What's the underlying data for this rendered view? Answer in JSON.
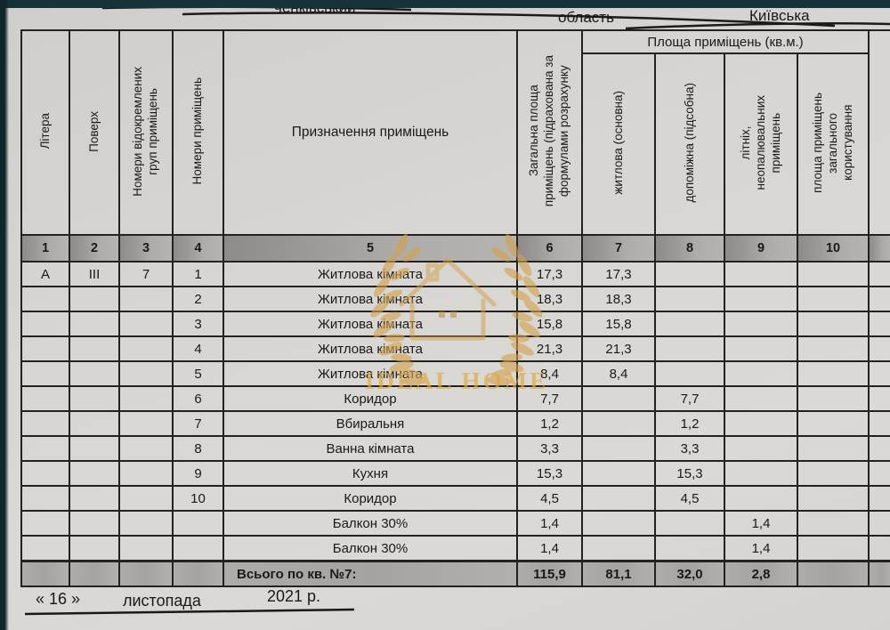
{
  "page_header": {
    "district_partial": "ченківський",
    "oblast_label": "область",
    "oblast_value": "Київська"
  },
  "table": {
    "headers": {
      "col1": "Літера",
      "col2": "Поверх",
      "col3": "Номери відокремлених\nгруп приміщень",
      "col4": "Номери приміщень",
      "col5": "Призначення приміщень",
      "col6": "Загальна площа\nприміщень (підрахована за\nформулами розрахунку",
      "area_group": "Площа приміщень (кв.м.)",
      "col7": "житлова (основна)",
      "col8": "допоміжна (підсобна)",
      "col9": "літніх,\nнеопалювальних\nприміщень",
      "col10": "площа приміщень\nзагального\nкористування"
    },
    "column_numbers": [
      "1",
      "2",
      "3",
      "4",
      "5",
      "6",
      "7",
      "8",
      "9",
      "10"
    ],
    "rows": [
      [
        "А",
        "ІІІ",
        "7",
        "1",
        "Житлова кімната",
        "17,3",
        "17,3",
        "",
        "",
        ""
      ],
      [
        "",
        "",
        "",
        "2",
        "Житлова кімната",
        "18,3",
        "18,3",
        "",
        "",
        ""
      ],
      [
        "",
        "",
        "",
        "3",
        "Житлова кімната",
        "15,8",
        "15,8",
        "",
        "",
        ""
      ],
      [
        "",
        "",
        "",
        "4",
        "Житлова кімната",
        "21,3",
        "21,3",
        "",
        "",
        ""
      ],
      [
        "",
        "",
        "",
        "5",
        "Житлова кімната",
        "8,4",
        "8,4",
        "",
        "",
        ""
      ],
      [
        "",
        "",
        "",
        "6",
        "Коридор",
        "7,7",
        "",
        "7,7",
        "",
        ""
      ],
      [
        "",
        "",
        "",
        "7",
        "Вбиральня",
        "1,2",
        "",
        "1,2",
        "",
        ""
      ],
      [
        "",
        "",
        "",
        "8",
        "Ванна кімната",
        "3,3",
        "",
        "3,3",
        "",
        ""
      ],
      [
        "",
        "",
        "",
        "9",
        "Кухня",
        "15,3",
        "",
        "15,3",
        "",
        ""
      ],
      [
        "",
        "",
        "",
        "10",
        "Коридор",
        "4,5",
        "",
        "4,5",
        "",
        ""
      ],
      [
        "",
        "",
        "",
        "",
        "Балкон 30%",
        "1,4",
        "",
        "",
        "1,4",
        ""
      ],
      [
        "",
        "",
        "",
        "",
        "Балкон 30%",
        "1,4",
        "",
        "",
        "1,4",
        ""
      ]
    ],
    "total_row": [
      "",
      "",
      "",
      "",
      "Всього по кв. №7:",
      "115,9",
      "81,1",
      "32,0",
      "2,8",
      ""
    ]
  },
  "watermark": {
    "text": "IDEAL HOME",
    "gold_color": "#d3a24e"
  },
  "footer": {
    "day": "« 16 »",
    "month": "листопада",
    "year": "2021 р."
  }
}
